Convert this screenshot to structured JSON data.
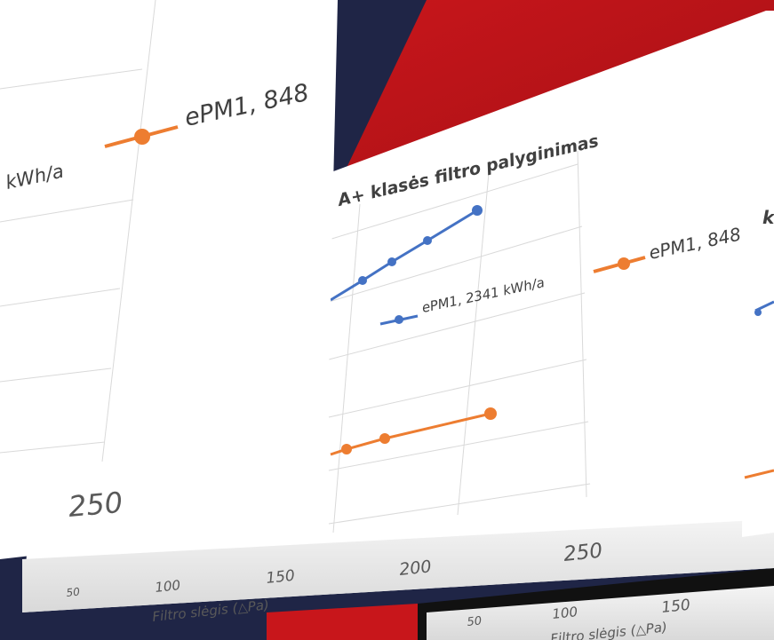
{
  "left_panel": {
    "legend_partial": "kWh/a",
    "legend_label": "ePM1, 848",
    "x_tick": "250"
  },
  "center_panel": {
    "title": "A+ klasės filtro palyginimas",
    "legend_blue": "ePM1, 2341 kWh/a",
    "legend_orange": "ePM1, 848",
    "x_ticks": [
      "200",
      "250"
    ]
  },
  "back_panel": {
    "x_ticks": [
      "50",
      "100",
      "150"
    ],
    "x_axis_label": "Filtro slėgis (△Pa)"
  },
  "right_panel": {
    "legend_partial": "k",
    "x_ticks": [
      "50",
      "100",
      "150"
    ],
    "x_axis_label": "Filtro slėgis (△Pa)"
  }
}
